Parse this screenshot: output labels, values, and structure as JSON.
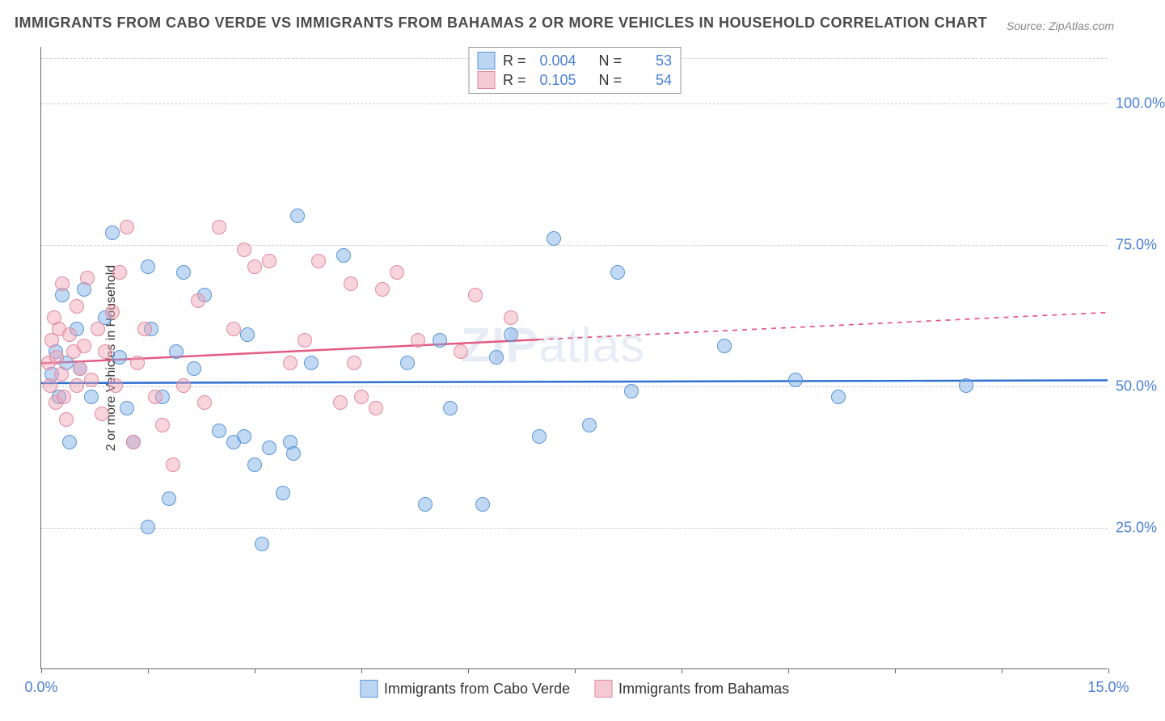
{
  "title": "IMMIGRANTS FROM CABO VERDE VS IMMIGRANTS FROM BAHAMAS 2 OR MORE VEHICLES IN HOUSEHOLD CORRELATION CHART",
  "source": "Source: ZipAtlas.com",
  "y_axis_label": "2 or more Vehicles in Household",
  "watermark_a": "ZIP",
  "watermark_b": "atlas",
  "chart": {
    "type": "scatter",
    "background_color": "#ffffff",
    "grid_color": "#cccccc",
    "axis_color": "#666666",
    "tick_label_color": "#4a7fd8",
    "xlim": [
      0,
      15
    ],
    "ylim": [
      0,
      110
    ],
    "x_ticks": [
      0,
      1.5,
      3.0,
      4.5,
      6.0,
      7.5,
      9.0,
      10.5,
      12.0,
      13.5,
      15.0
    ],
    "x_tick_labels": {
      "0": "0.0%",
      "15": "15.0%"
    },
    "y_gridlines": [
      25,
      50,
      75,
      100,
      108
    ],
    "y_tick_labels": {
      "25": "25.0%",
      "50": "50.0%",
      "75": "75.0%",
      "100": "100.0%"
    },
    "marker_radius": 9,
    "marker_border_width": 1.2,
    "trend_line_width": 2.5
  },
  "series": [
    {
      "name": "Immigrants from Cabo Verde",
      "fill": "rgba(120,170,230,0.45)",
      "stroke": "#5b95d6",
      "swatch_fill": "#bcd6f2",
      "swatch_border": "#5b95d6",
      "R": "0.004",
      "N": "53",
      "trend": {
        "y1": 50.5,
        "y2": 51.0,
        "dashed_from_x": 15,
        "color": "#2f6fd0"
      },
      "points": [
        [
          0.15,
          52
        ],
        [
          0.2,
          56
        ],
        [
          0.25,
          48
        ],
        [
          0.3,
          66
        ],
        [
          0.35,
          54
        ],
        [
          0.4,
          40
        ],
        [
          0.5,
          60
        ],
        [
          0.55,
          53
        ],
        [
          0.6,
          67
        ],
        [
          0.7,
          48
        ],
        [
          0.9,
          62
        ],
        [
          1.0,
          77
        ],
        [
          1.1,
          55
        ],
        [
          1.2,
          46
        ],
        [
          1.3,
          40
        ],
        [
          1.5,
          25
        ],
        [
          1.5,
          71
        ],
        [
          1.55,
          60
        ],
        [
          1.7,
          48
        ],
        [
          1.8,
          30
        ],
        [
          1.9,
          56
        ],
        [
          2.0,
          70
        ],
        [
          2.15,
          53
        ],
        [
          2.3,
          66
        ],
        [
          2.5,
          42
        ],
        [
          2.7,
          40
        ],
        [
          2.85,
          41
        ],
        [
          2.9,
          59
        ],
        [
          3.0,
          36
        ],
        [
          3.1,
          22
        ],
        [
          3.2,
          39
        ],
        [
          3.4,
          31
        ],
        [
          3.5,
          40
        ],
        [
          3.55,
          38
        ],
        [
          3.6,
          80
        ],
        [
          3.8,
          54
        ],
        [
          4.25,
          73
        ],
        [
          5.15,
          54
        ],
        [
          5.4,
          29
        ],
        [
          5.6,
          58
        ],
        [
          5.75,
          46
        ],
        [
          6.2,
          29
        ],
        [
          6.4,
          55
        ],
        [
          6.6,
          59
        ],
        [
          7.0,
          41
        ],
        [
          7.2,
          76
        ],
        [
          7.7,
          43
        ],
        [
          8.1,
          70
        ],
        [
          8.3,
          49
        ],
        [
          9.6,
          57
        ],
        [
          10.6,
          51
        ],
        [
          11.2,
          48
        ],
        [
          13.0,
          50
        ]
      ]
    },
    {
      "name": "Immigrants from Bahamas",
      "fill": "rgba(240,160,180,0.45)",
      "stroke": "#e08aa0",
      "swatch_fill": "#f5c9d4",
      "swatch_border": "#e08aa0",
      "R": "0.105",
      "N": "54",
      "trend": {
        "y1": 54,
        "y2": 63,
        "dashed_from_x": 7.0,
        "color": "#e35b82"
      },
      "points": [
        [
          0.1,
          54
        ],
        [
          0.12,
          50
        ],
        [
          0.15,
          58
        ],
        [
          0.18,
          62
        ],
        [
          0.2,
          47
        ],
        [
          0.22,
          55
        ],
        [
          0.25,
          60
        ],
        [
          0.28,
          52
        ],
        [
          0.3,
          68
        ],
        [
          0.32,
          48
        ],
        [
          0.35,
          44
        ],
        [
          0.4,
          59
        ],
        [
          0.45,
          56
        ],
        [
          0.5,
          50
        ],
        [
          0.5,
          64
        ],
        [
          0.55,
          53
        ],
        [
          0.6,
          57
        ],
        [
          0.65,
          69
        ],
        [
          0.7,
          51
        ],
        [
          0.8,
          60
        ],
        [
          0.85,
          45
        ],
        [
          0.9,
          56
        ],
        [
          1.0,
          63
        ],
        [
          1.05,
          50
        ],
        [
          1.1,
          70
        ],
        [
          1.2,
          78
        ],
        [
          1.3,
          40
        ],
        [
          1.35,
          54
        ],
        [
          1.45,
          60
        ],
        [
          1.6,
          48
        ],
        [
          1.7,
          43
        ],
        [
          1.85,
          36
        ],
        [
          2.0,
          50
        ],
        [
          2.2,
          65
        ],
        [
          2.3,
          47
        ],
        [
          2.5,
          78
        ],
        [
          2.7,
          60
        ],
        [
          2.85,
          74
        ],
        [
          3.0,
          71
        ],
        [
          3.2,
          72
        ],
        [
          3.5,
          54
        ],
        [
          3.7,
          58
        ],
        [
          3.9,
          72
        ],
        [
          4.2,
          47
        ],
        [
          4.35,
          68
        ],
        [
          4.4,
          54
        ],
        [
          4.5,
          48
        ],
        [
          4.7,
          46
        ],
        [
          4.8,
          67
        ],
        [
          5.0,
          70
        ],
        [
          5.3,
          58
        ],
        [
          5.9,
          56
        ],
        [
          6.1,
          66
        ],
        [
          6.6,
          62
        ]
      ]
    }
  ],
  "legend_top": {
    "label_R": "R =",
    "label_N": "N ="
  },
  "legend_bottom_labels": [
    "Immigrants from Cabo Verde",
    "Immigrants from Bahamas"
  ]
}
